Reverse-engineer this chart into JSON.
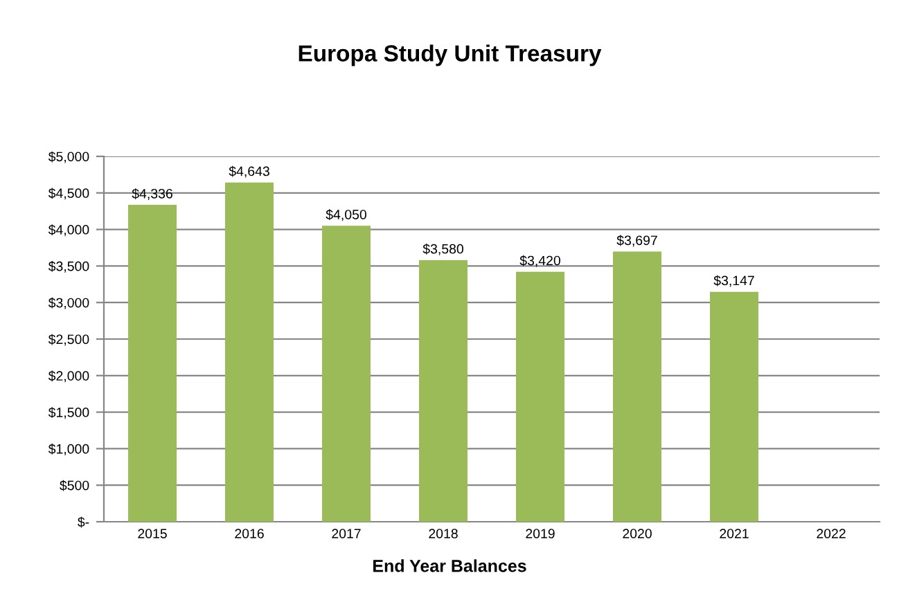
{
  "chart_data": {
    "type": "bar",
    "title": "Europa Study Unit Treasury",
    "xlabel": "End Year Balances",
    "categories": [
      "2015",
      "2016",
      "2017",
      "2018",
      "2019",
      "2020",
      "2021",
      "2022"
    ],
    "values": [
      4336,
      4643,
      4050,
      3580,
      3420,
      3697,
      3147,
      null
    ],
    "value_labels": [
      "$4,336",
      "$4,643",
      "$4,050",
      "$3,580",
      "$3,420",
      "$3,697",
      "$3,147",
      null
    ],
    "color": "#9bbb59",
    "ylim": [
      0,
      5000
    ],
    "yticks": [
      {
        "value": 0,
        "label": "$-"
      },
      {
        "value": 500,
        "label": "$500"
      },
      {
        "value": 1000,
        "label": "$1,000"
      },
      {
        "value": 1500,
        "label": "$1,500"
      },
      {
        "value": 2000,
        "label": "$2,000"
      },
      {
        "value": 2500,
        "label": "$2,500"
      },
      {
        "value": 3000,
        "label": "$3,000"
      },
      {
        "value": 3500,
        "label": "$3,500"
      },
      {
        "value": 4000,
        "label": "$4,000"
      },
      {
        "value": 4500,
        "label": "$4,500"
      },
      {
        "value": 5000,
        "label": "$5,000"
      }
    ],
    "grid": "y",
    "legend": false
  }
}
